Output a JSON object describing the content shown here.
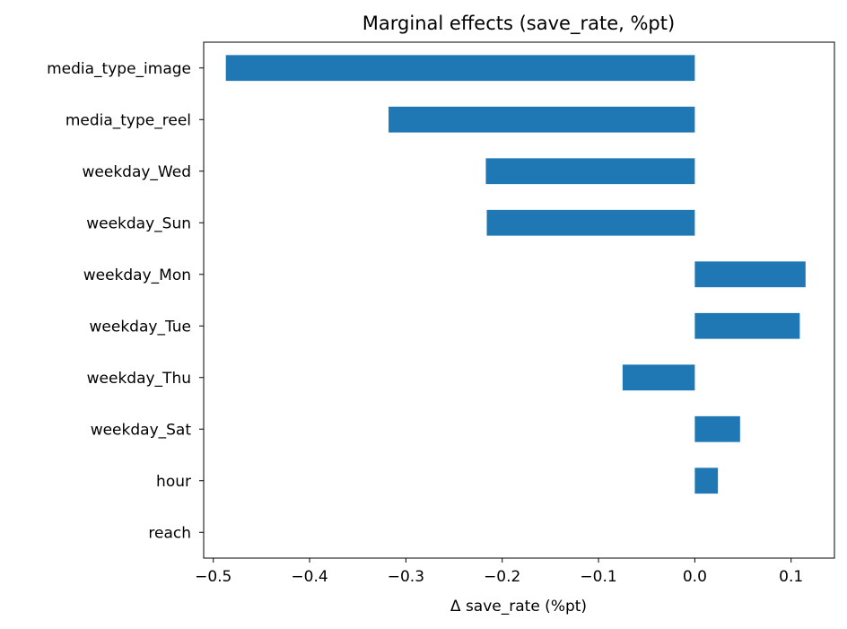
{
  "chart_data": {
    "type": "bar",
    "orientation": "horizontal",
    "title": "Marginal effects (save_rate, %pt)",
    "xlabel": "Δ save_rate (%pt)",
    "ylabel": "",
    "categories": [
      "media_type_image",
      "media_type_reel",
      "weekday_Wed",
      "weekday_Sun",
      "weekday_Mon",
      "weekday_Tue",
      "weekday_Thu",
      "weekday_Sat",
      "hour",
      "reach"
    ],
    "values": [
      -0.487,
      -0.318,
      -0.217,
      -0.216,
      0.115,
      0.109,
      -0.075,
      0.047,
      0.024,
      0.0
    ],
    "xlim": [
      -0.51,
      0.145
    ],
    "xticks": [
      -0.5,
      -0.4,
      -0.3,
      -0.2,
      -0.1,
      0.0,
      0.1
    ],
    "xtick_labels": [
      "−0.5",
      "−0.4",
      "−0.3",
      "−0.2",
      "−0.1",
      "0.0",
      "0.1"
    ],
    "grid": false,
    "legend": "none",
    "colors": {
      "bar": "#1f77b4",
      "axis": "#000000",
      "background": "#ffffff"
    }
  }
}
